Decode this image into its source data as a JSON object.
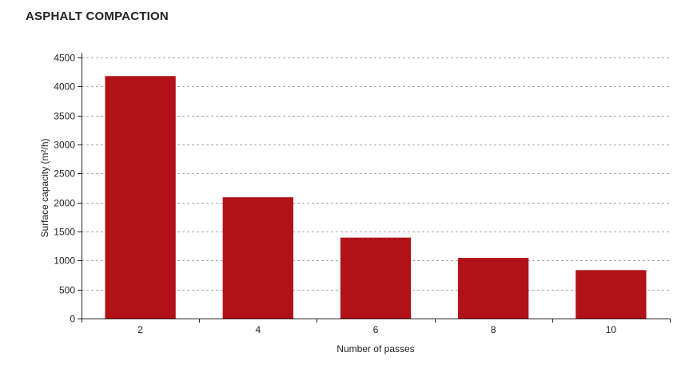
{
  "chart_data": {
    "type": "bar",
    "title": "ASPHALT COMPACTION",
    "xlabel": "Number of passes",
    "ylabel": "Surface capacity (m²/h)",
    "categories": [
      "2",
      "4",
      "6",
      "8",
      "10"
    ],
    "values": [
      4180,
      2090,
      1395,
      1045,
      835
    ],
    "ylim": [
      0,
      4500
    ],
    "yticks": [
      0,
      500,
      1000,
      1500,
      2000,
      2500,
      3000,
      3500,
      4000,
      4500
    ],
    "grid": true,
    "bar_color": "#b01218",
    "grid_color": "#aaaaaa"
  }
}
